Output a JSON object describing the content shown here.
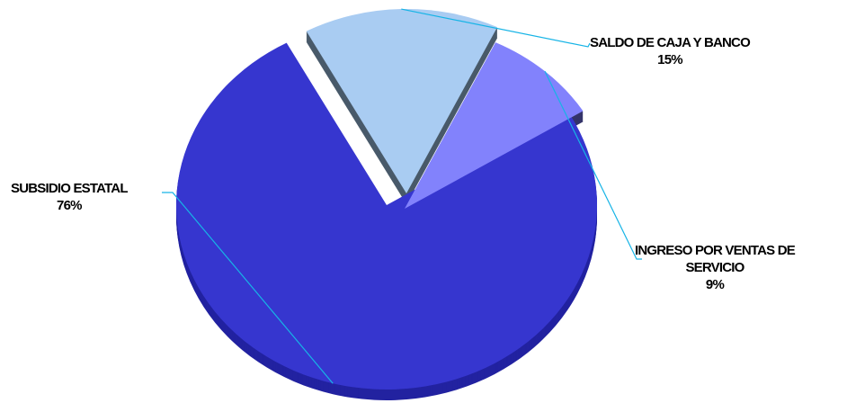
{
  "chart_data": {
    "type": "pie",
    "title": "",
    "slices": [
      {
        "label": "SUBSIDIO ESTATAL",
        "value": 76,
        "pct": "76%",
        "color": "#3636CF",
        "side": "#2222A0"
      },
      {
        "label": "SALDO DE CAJA Y BANCO",
        "value": 15,
        "pct": "15%",
        "color": "#A9CCF2",
        "side": "#495A6A"
      },
      {
        "label": "INGRESO POR VENTAS DE SERVICIO",
        "value": 9,
        "pct": "9%",
        "color": "#8282FC",
        "side": "#34346A"
      }
    ],
    "exploded": [
      "SALDO DE CAJA Y BANCO",
      "INGRESO POR VENTAS DE SERVICIO"
    ],
    "style": "3d",
    "legend": "none",
    "leader_line_color": "#17B4E6"
  },
  "labels": {
    "subsidio_name": "SUBSIDIO ESTATAL",
    "subsidio_pct": "76%",
    "saldo_name": "SALDO DE CAJA Y BANCO",
    "saldo_pct": "15%",
    "ingreso_name_1": "INGRESO POR VENTAS DE",
    "ingreso_name_2": "SERVICIO",
    "ingreso_pct": "9%"
  }
}
